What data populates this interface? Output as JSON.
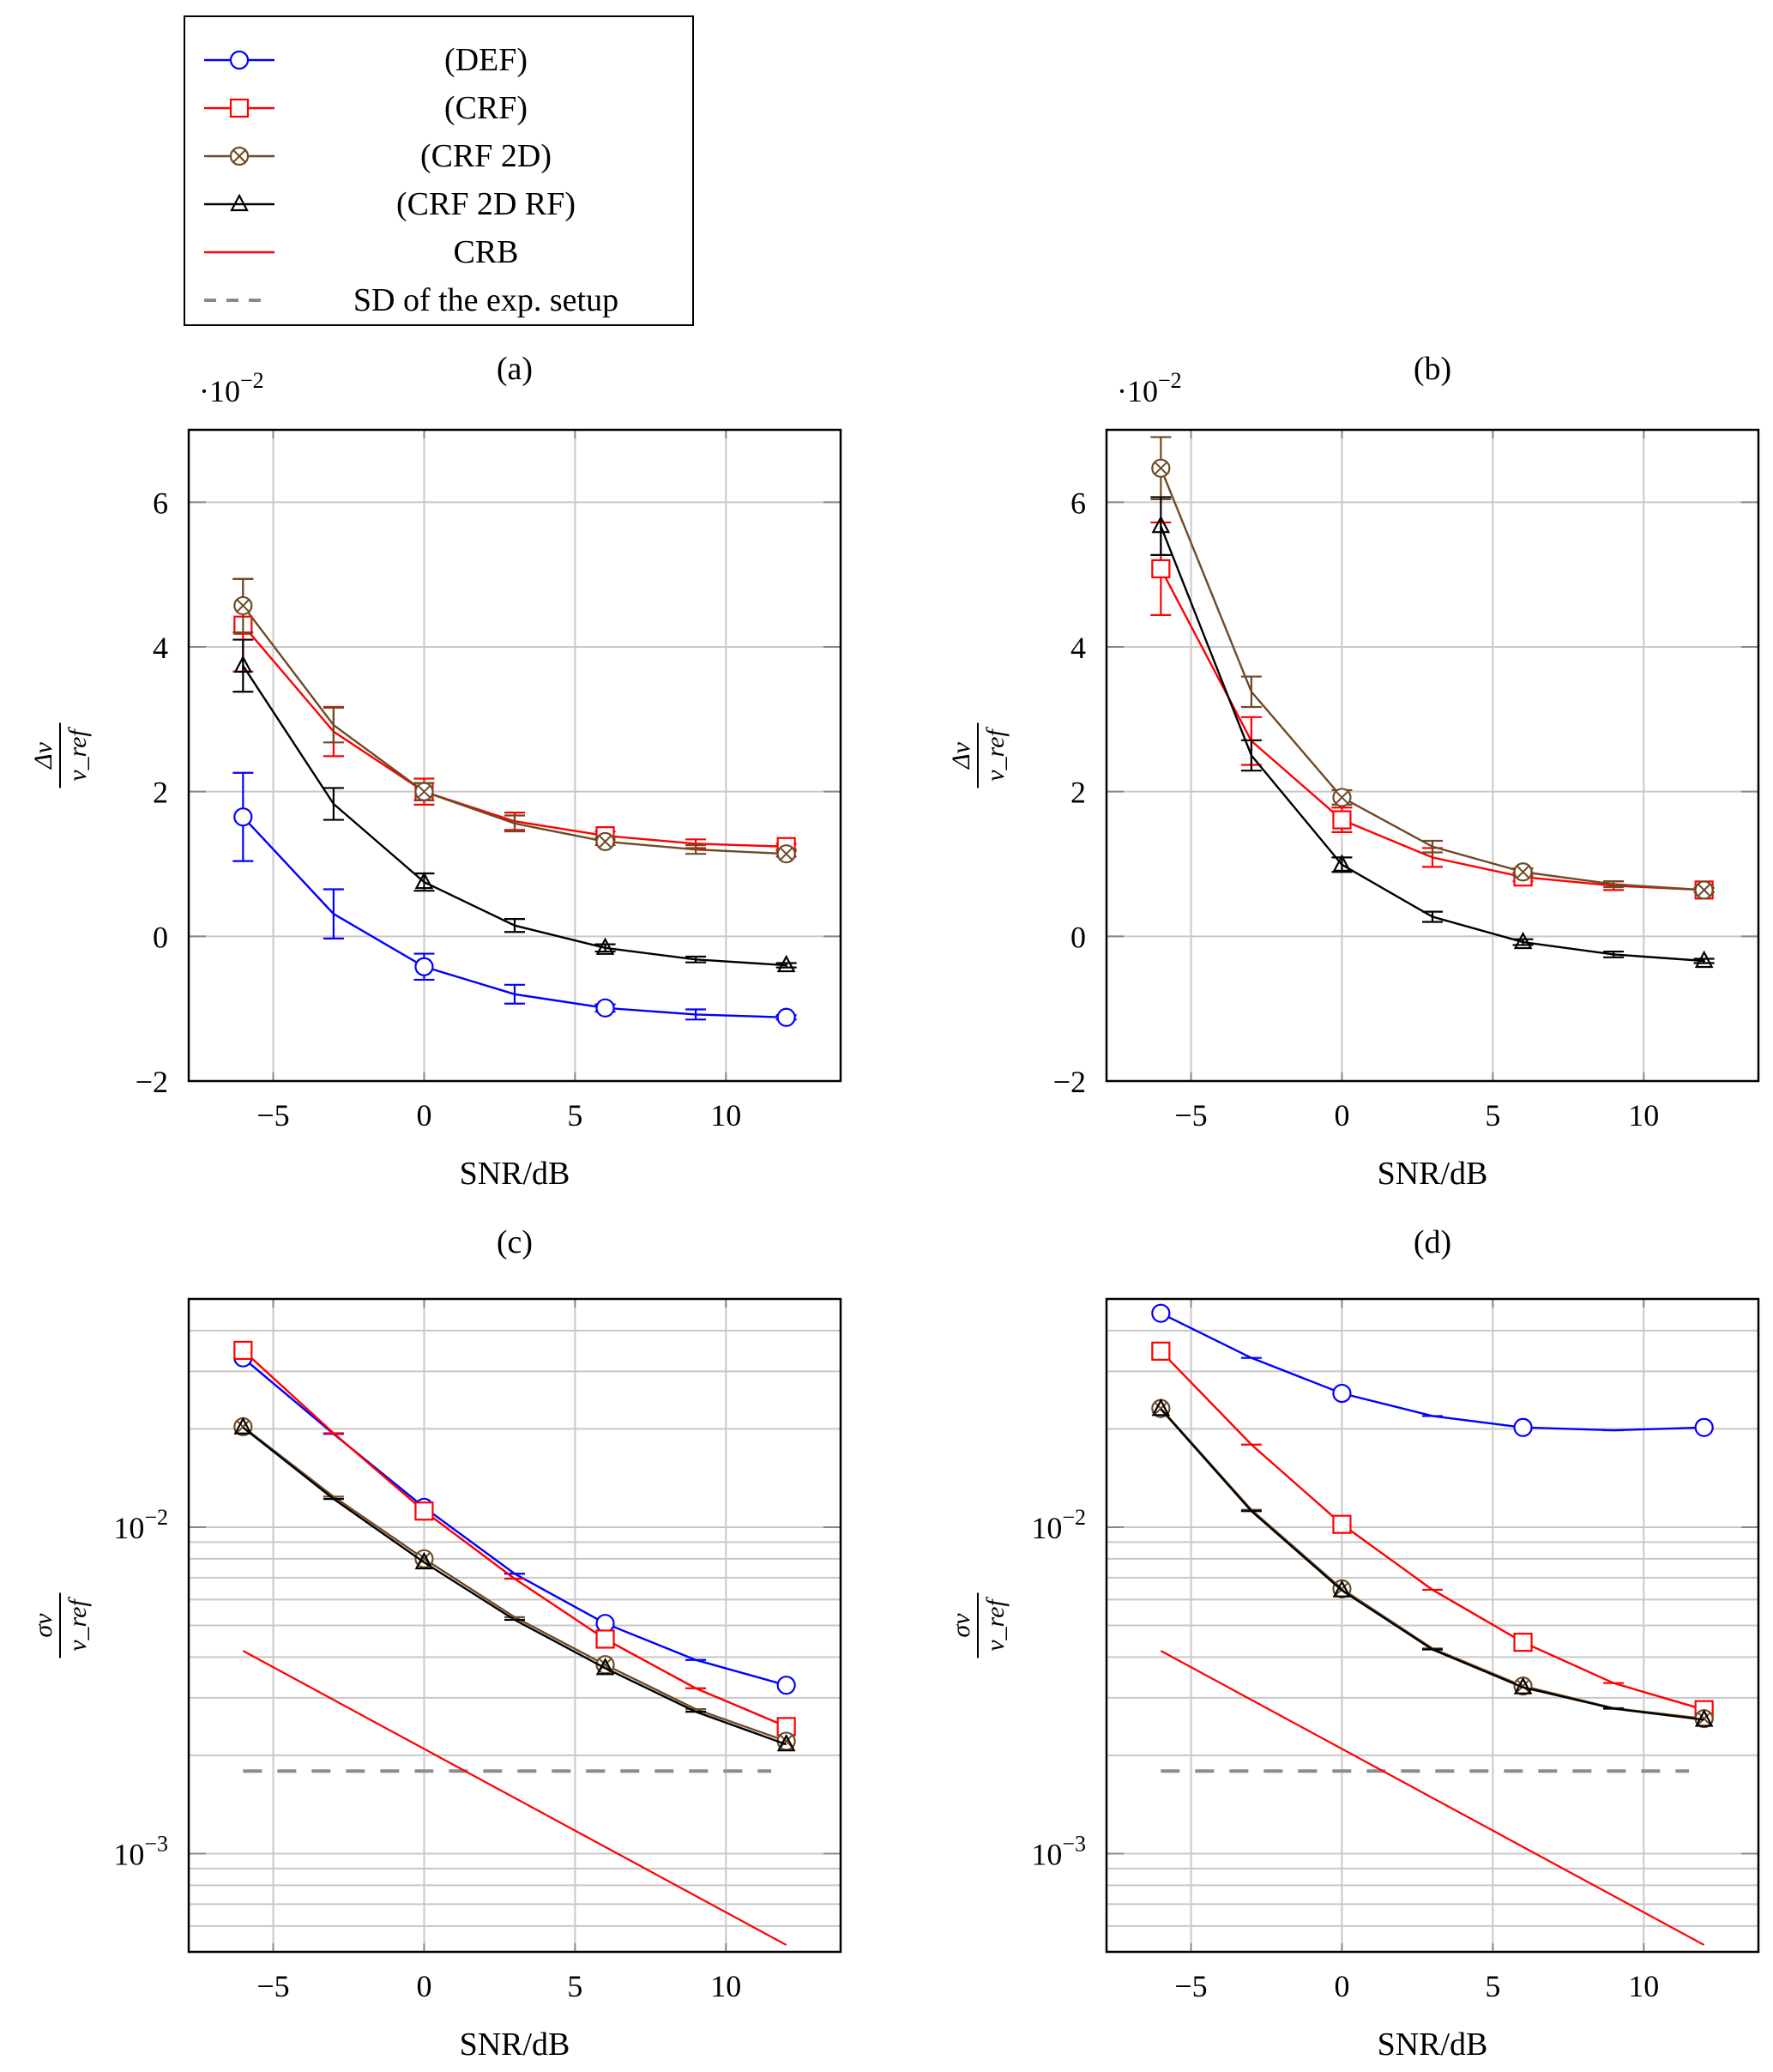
{
  "legend": {
    "items": [
      {
        "key": "def",
        "label": "(DEF)",
        "color": "#0000ff",
        "marker": "circle",
        "line": "solid"
      },
      {
        "key": "crf",
        "label": "(CRF)",
        "color": "#ff0000",
        "marker": "square",
        "line": "solid"
      },
      {
        "key": "crf2d",
        "label": "(CRF 2D)",
        "color": "#6e4a26",
        "marker": "otimes",
        "line": "solid"
      },
      {
        "key": "crf2drf",
        "label": "(CRF 2D RF)",
        "color": "#000000",
        "marker": "triangle",
        "line": "solid"
      },
      {
        "key": "crb",
        "label": "CRB",
        "color": "#ff0000",
        "marker": "none",
        "line": "solid"
      },
      {
        "key": "sd",
        "label": "SD of the exp. setup",
        "color": "#888888",
        "marker": "none",
        "line": "dashed"
      }
    ]
  },
  "chart_data": [
    {
      "id": "a",
      "type": "line",
      "title": "(a)",
      "xlabel": "SNR/dB",
      "ylabel": "Δv / v_ref",
      "ylabel_num": "Δv",
      "ylabel_den": "v_ref",
      "y_multiplier": "·10^-2",
      "yscale": "linear",
      "xlim": [
        -7.8,
        13.8
      ],
      "ylim": [
        -2,
        7
      ],
      "xticks": [
        -5,
        0,
        5,
        10
      ],
      "xtick_labels": [
        "−5",
        "0",
        "5",
        "10"
      ],
      "yticks": [
        -2,
        0,
        2,
        4,
        6
      ],
      "ytick_labels": [
        "−2",
        "0",
        "2",
        "4",
        "6"
      ],
      "grid": true,
      "x": [
        -6,
        -3,
        0,
        3,
        6,
        9,
        12
      ],
      "series": [
        {
          "name": "(DEF)",
          "key": "def",
          "values": [
            1.65,
            0.31,
            -0.42,
            -0.8,
            -0.99,
            -1.08,
            -1.12
          ],
          "err": [
            0.61,
            0.34,
            0.18,
            0.13,
            0.05,
            0.07,
            0.03
          ]
        },
        {
          "name": "(CRF)",
          "key": "crf",
          "values": [
            4.3,
            2.83,
            2.0,
            1.59,
            1.39,
            1.28,
            1.24
          ],
          "err": [
            0.64,
            0.34,
            0.18,
            0.12,
            0.06,
            0.06,
            0.04
          ]
        },
        {
          "name": "(CRF 2D)",
          "key": "crf2d",
          "values": [
            4.57,
            2.92,
            2.0,
            1.56,
            1.31,
            1.2,
            1.14
          ],
          "err": [
            0.37,
            0.24,
            0.12,
            0.11,
            0.05,
            0.06,
            0.04
          ]
        },
        {
          "name": "(CRF 2D RF)",
          "key": "crf2drf",
          "values": [
            3.74,
            1.83,
            0.75,
            0.15,
            -0.16,
            -0.32,
            -0.4
          ],
          "err": [
            0.36,
            0.22,
            0.12,
            0.09,
            0.05,
            0.04,
            0.03
          ]
        }
      ]
    },
    {
      "id": "b",
      "type": "line",
      "title": "(b)",
      "xlabel": "SNR/dB",
      "ylabel": "Δv / v_ref",
      "ylabel_num": "Δv",
      "ylabel_den": "v_ref",
      "y_multiplier": "·10^-2",
      "yscale": "linear",
      "xlim": [
        -7.8,
        13.8
      ],
      "ylim": [
        -2,
        7
      ],
      "xticks": [
        -5,
        0,
        5,
        10
      ],
      "xtick_labels": [
        "−5",
        "0",
        "5",
        "10"
      ],
      "yticks": [
        -2,
        0,
        2,
        4,
        6
      ],
      "ytick_labels": [
        "−2",
        "0",
        "2",
        "4",
        "6"
      ],
      "grid": true,
      "x": [
        -6,
        -3,
        0,
        3,
        6,
        9,
        12
      ],
      "series": [
        {
          "name": "(CRF)",
          "key": "crf",
          "values": [
            5.08,
            2.7,
            1.61,
            1.09,
            0.82,
            0.7,
            0.64
          ],
          "err": [
            0.64,
            0.33,
            0.17,
            0.13,
            0.06,
            0.06,
            0.03
          ]
        },
        {
          "name": "(CRF 2D)",
          "key": "crf2d",
          "values": [
            6.47,
            3.38,
            1.92,
            1.24,
            0.89,
            0.72,
            0.64
          ],
          "err": [
            0.43,
            0.21,
            0.1,
            0.08,
            0.05,
            0.04,
            0.03
          ]
        },
        {
          "name": "(CRF 2D RF)",
          "key": "crf2drf",
          "values": [
            5.67,
            2.5,
            0.99,
            0.27,
            -0.08,
            -0.25,
            -0.34
          ],
          "err": [
            0.4,
            0.21,
            0.1,
            0.07,
            0.04,
            0.04,
            0.03
          ]
        }
      ]
    },
    {
      "id": "c",
      "type": "line",
      "title": "(c)",
      "xlabel": "SNR/dB",
      "ylabel": "σ_v / v_ref",
      "ylabel_num": "σv",
      "ylabel_den": "v_ref",
      "yscale": "log",
      "xlim": [
        -7.8,
        13.8
      ],
      "ylim": [
        0.0005,
        0.05
      ],
      "xticks": [
        -5,
        0,
        5,
        10
      ],
      "xtick_labels": [
        "−5",
        "0",
        "5",
        "10"
      ],
      "yticks": [
        0.001,
        0.01
      ],
      "ytick_labels": [
        "10^-3",
        "10^-2"
      ],
      "grid": true,
      "x": [
        -6,
        -3,
        0,
        3,
        6,
        9,
        12
      ],
      "series": [
        {
          "name": "(DEF)",
          "key": "def",
          "values": [
            0.033,
            0.0193,
            0.0115,
            0.0072,
            0.00507,
            0.00392,
            0.00328
          ]
        },
        {
          "name": "(CRF)",
          "key": "crf",
          "values": [
            0.0348,
            0.0194,
            0.0112,
            0.00695,
            0.00454,
            0.00321,
            0.00245
          ]
        },
        {
          "name": "(CRF 2D)",
          "key": "crf2d",
          "values": [
            0.0203,
            0.0124,
            0.008,
            0.0053,
            0.00379,
            0.00277,
            0.00221
          ]
        },
        {
          "name": "(CRF 2D RF)",
          "key": "crf2drf",
          "values": [
            0.0202,
            0.0122,
            0.0078,
            0.0052,
            0.0037,
            0.00272,
            0.00216
          ]
        }
      ],
      "crb": {
        "name": "CRB",
        "x": [
          -6,
          12
        ],
        "values": [
          0.00418,
          0.000525
        ]
      },
      "sd": {
        "name": "SD of the exp. setup",
        "x": [
          -6,
          11.5
        ],
        "value": 0.00179
      }
    },
    {
      "id": "d",
      "type": "line",
      "title": "(d)",
      "xlabel": "SNR/dB",
      "ylabel": "σ_v / v_ref",
      "ylabel_num": "σv",
      "ylabel_den": "v_ref",
      "yscale": "log",
      "xlim": [
        -7.8,
        13.8
      ],
      "ylim": [
        0.0005,
        0.05
      ],
      "xticks": [
        -5,
        0,
        5,
        10
      ],
      "xtick_labels": [
        "−5",
        "0",
        "5",
        "10"
      ],
      "yticks": [
        0.001,
        0.01
      ],
      "ytick_labels": [
        "10^-3",
        "10^-2"
      ],
      "grid": true,
      "x": [
        -6,
        -3,
        0,
        3,
        6,
        9,
        12
      ],
      "series": [
        {
          "name": "(DEF)",
          "key": "def",
          "values": [
            0.0452,
            0.033,
            0.0257,
            0.0219,
            0.0202,
            0.0198,
            0.0202
          ]
        },
        {
          "name": "(CRF)",
          "key": "crf",
          "values": [
            0.0346,
            0.0179,
            0.0102,
            0.00643,
            0.00444,
            0.00333,
            0.00276
          ]
        },
        {
          "name": "(CRF 2D)",
          "key": "crf2d",
          "values": [
            0.0231,
            0.0113,
            0.00647,
            0.00425,
            0.00326,
            0.00279,
            0.00259
          ]
        },
        {
          "name": "(CRF 2D RF)",
          "key": "crf2drf",
          "values": [
            0.023,
            0.0112,
            0.0064,
            0.00422,
            0.00323,
            0.00278,
            0.00257
          ]
        }
      ],
      "crb": {
        "name": "CRB",
        "x": [
          -6,
          12
        ],
        "values": [
          0.00418,
          0.000525
        ]
      },
      "sd": {
        "name": "SD of the exp. setup",
        "x": [
          -6,
          11.5
        ],
        "value": 0.00179
      }
    }
  ]
}
